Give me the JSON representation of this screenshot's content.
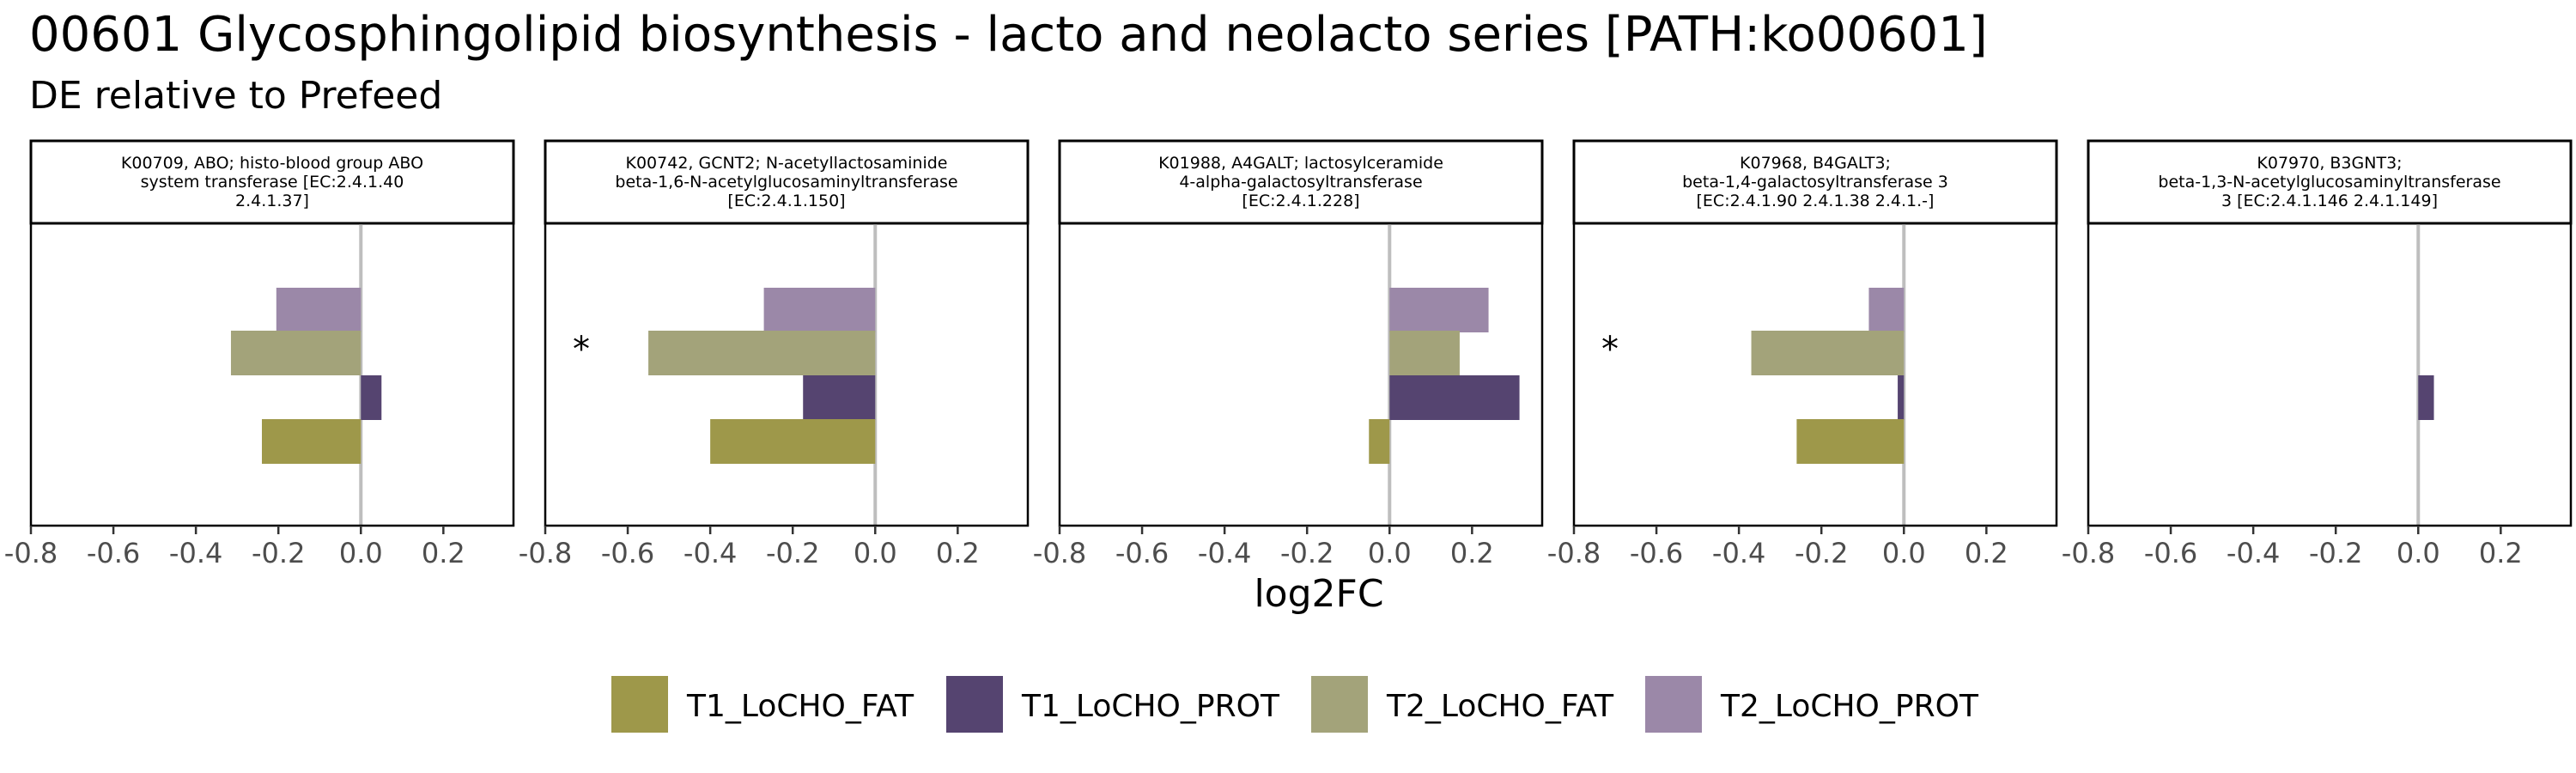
{
  "title": "00601 Glycosphingolipid biosynthesis - lacto and neolacto series [PATH:ko00601]",
  "subtitle": "DE relative to Prefeed",
  "colors": {
    "T1_LoCHO_FAT": "#9e984a",
    "T1_LoCHO_PROT": "#554470",
    "T2_LoCHO_FAT": "#a3a37a",
    "T2_LoCHO_PROT": "#9b88a8",
    "zero_line": "#bebebe"
  },
  "chart_data": {
    "type": "bar",
    "orientation": "horizontal",
    "xlabel": "log2FC",
    "xlim": [
      -0.8,
      0.37
    ],
    "xticks": [
      -0.8,
      -0.6,
      -0.4,
      -0.2,
      0.0,
      0.2
    ],
    "xtick_labels": [
      "-0.8",
      "-0.6",
      "-0.4",
      "-0.2",
      "0.0",
      "0.2"
    ],
    "series_order_top_to_bottom": [
      "T2_LoCHO_PROT",
      "T2_LoCHO_FAT",
      "T1_LoCHO_PROT",
      "T1_LoCHO_FAT"
    ],
    "legend": {
      "position": "bottom",
      "entries": [
        "T1_LoCHO_FAT",
        "T1_LoCHO_PROT",
        "T2_LoCHO_FAT",
        "T2_LoCHO_PROT"
      ]
    },
    "panels": [
      {
        "strip": [
          "K00709, ABO; histo-blood group ABO",
          "system transferase [EC:2.4.1.40",
          "2.4.1.37]"
        ],
        "values": {
          "T2_LoCHO_PROT": -0.205,
          "T2_LoCHO_FAT": -0.315,
          "T1_LoCHO_PROT": 0.05,
          "T1_LoCHO_FAT": -0.24
        },
        "annotation": ""
      },
      {
        "strip": [
          "K00742, GCNT2; N-acetyllactosaminide",
          "beta-1,6-N-acetylglucosaminyltransferase",
          "[EC:2.4.1.150]"
        ],
        "values": {
          "T2_LoCHO_PROT": -0.27,
          "T2_LoCHO_FAT": -0.55,
          "T1_LoCHO_PROT": -0.175,
          "T1_LoCHO_FAT": -0.4
        },
        "annotation": "*"
      },
      {
        "strip": [
          "K01988, A4GALT; lactosylceramide",
          "4-alpha-galactosyltransferase",
          "[EC:2.4.1.228]"
        ],
        "values": {
          "T2_LoCHO_PROT": 0.24,
          "T2_LoCHO_FAT": 0.17,
          "T1_LoCHO_PROT": 0.315,
          "T1_LoCHO_FAT": -0.05
        },
        "annotation": ""
      },
      {
        "strip": [
          "K07968, B4GALT3;",
          "beta-1,4-galactosyltransferase 3",
          "[EC:2.4.1.90 2.4.1.38 2.4.1.-]"
        ],
        "values": {
          "T2_LoCHO_PROT": -0.085,
          "T2_LoCHO_FAT": -0.37,
          "T1_LoCHO_PROT": -0.015,
          "T1_LoCHO_FAT": -0.26
        },
        "annotation": "*"
      },
      {
        "strip": [
          "K07970, B3GNT3;",
          "beta-1,3-N-acetylglucosaminyltransferase",
          "3 [EC:2.4.1.146 2.4.1.149]"
        ],
        "values": {
          "T2_LoCHO_PROT": 0,
          "T2_LoCHO_FAT": 0,
          "T1_LoCHO_PROT": 0.038,
          "T1_LoCHO_FAT": 0
        },
        "annotation": ""
      }
    ]
  }
}
